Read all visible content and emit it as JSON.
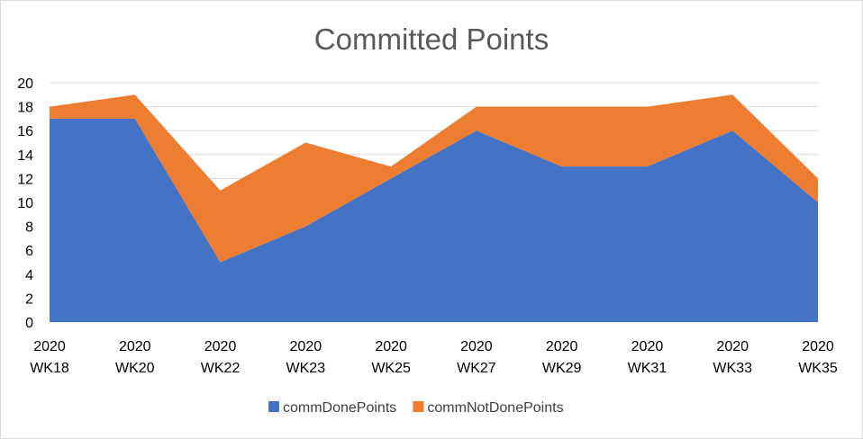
{
  "chart_data": {
    "type": "area",
    "stacked": true,
    "title": "Committed Points",
    "xlabel": "",
    "ylabel": "",
    "categories": [
      [
        "2020",
        "WK18"
      ],
      [
        "2020",
        "WK20"
      ],
      [
        "2020",
        "WK22"
      ],
      [
        "2020",
        "WK23"
      ],
      [
        "2020",
        "WK25"
      ],
      [
        "2020",
        "WK27"
      ],
      [
        "2020",
        "WK29"
      ],
      [
        "2020",
        "WK31"
      ],
      [
        "2020",
        "WK33"
      ],
      [
        "2020",
        "WK35"
      ]
    ],
    "ylim": [
      0,
      20
    ],
    "yticks": [
      0,
      2,
      4,
      6,
      8,
      10,
      12,
      14,
      16,
      18,
      20
    ],
    "grid": true,
    "legend": "bottom",
    "series": [
      {
        "name": "commDonePoints",
        "color": "#4472c4",
        "values": [
          17,
          17,
          5,
          8,
          12,
          16,
          13,
          13,
          16,
          10
        ]
      },
      {
        "name": "commNotDonePoints",
        "color": "#ed7d31",
        "values": [
          1,
          2,
          6,
          7,
          1,
          2,
          5,
          5,
          3,
          2
        ]
      }
    ]
  }
}
